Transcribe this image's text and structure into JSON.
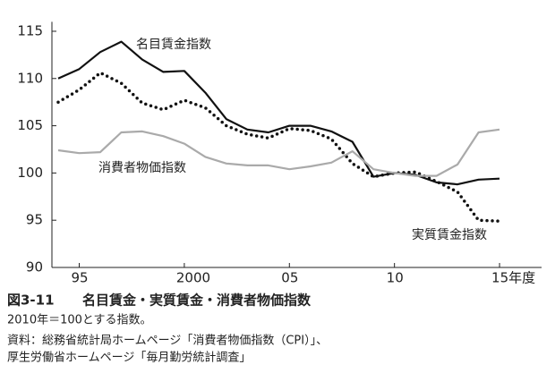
{
  "chart_data": {
    "type": "line",
    "figure_label": "図3-11",
    "title": "名目賃金・実質賃金・消費者物価指数",
    "subtitle": "2010年＝100とする指数。",
    "source": [
      "資料：総務省統計局ホームページ「消費者物価指数（CPI）」、",
      "厚生労働省ホームページ「毎月勤労統計調査」"
    ],
    "x": [
      1994,
      1995,
      1996,
      1997,
      1998,
      1999,
      2000,
      2001,
      2002,
      2003,
      2004,
      2005,
      2006,
      2007,
      2008,
      2009,
      2010,
      2011,
      2012,
      2013,
      2014,
      2015
    ],
    "series": [
      {
        "name": "名目賃金指数",
        "color": "#111111",
        "dash": "solid",
        "values": [
          110.0,
          111.0,
          112.8,
          113.9,
          112.0,
          110.7,
          110.8,
          108.5,
          105.7,
          104.6,
          104.3,
          105.0,
          105.0,
          104.4,
          103.3,
          99.6,
          100.0,
          99.8,
          99.0,
          98.8,
          99.3,
          99.4
        ]
      },
      {
        "name": "実質賃金指数",
        "color": "#111111",
        "dash": "dotted",
        "values": [
          107.5,
          108.8,
          110.6,
          109.5,
          107.4,
          106.7,
          107.7,
          106.9,
          105.0,
          104.1,
          103.7,
          104.7,
          104.5,
          103.6,
          101.0,
          99.6,
          100.0,
          100.1,
          99.1,
          98.0,
          95.0,
          94.9
        ]
      },
      {
        "name": "消費者物価指数",
        "color": "#aaaaaa",
        "dash": "solid",
        "values": [
          102.4,
          102.1,
          102.2,
          104.3,
          104.4,
          103.9,
          103.1,
          101.7,
          101.0,
          100.8,
          100.8,
          100.4,
          100.7,
          101.1,
          102.3,
          100.4,
          100.0,
          99.7,
          99.7,
          100.9,
          104.3,
          104.6
        ]
      }
    ],
    "xlim": [
      1993.7,
      2017.0
    ],
    "xticks": [
      {
        "value": 1995,
        "label": "95"
      },
      2000,
      {
        "value": 2005,
        "label": "05"
      },
      {
        "value": 2010,
        "label": "10"
      },
      {
        "value": 2015,
        "label": "15年度"
      }
    ],
    "ylim": [
      90,
      116
    ],
    "yticks": [
      90,
      95,
      100,
      105,
      110,
      115
    ],
    "grid": false
  }
}
